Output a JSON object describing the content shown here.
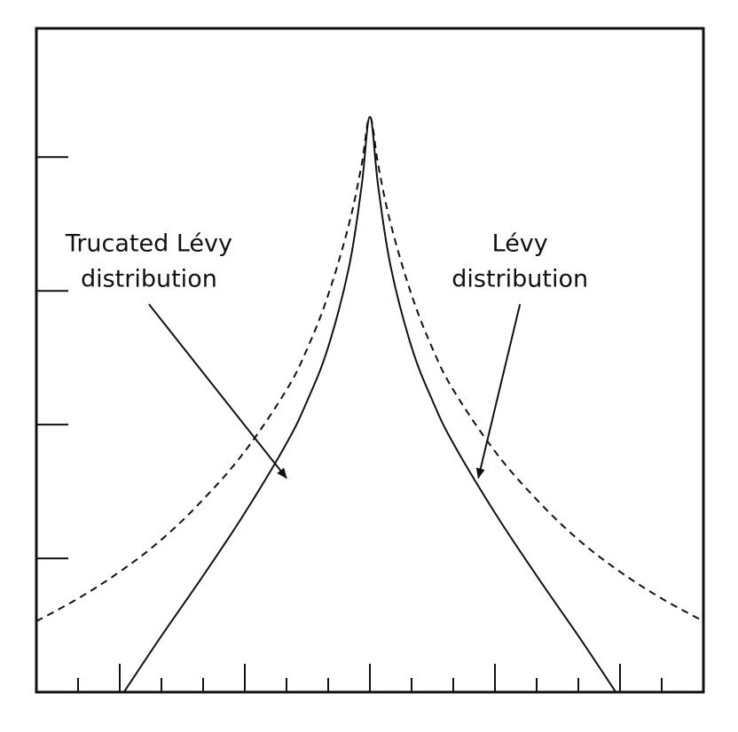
{
  "chart_data": {
    "type": "line",
    "title": "",
    "xlabel": "",
    "ylabel": "",
    "xlim": [
      -8,
      8
    ],
    "ylim": [
      0,
      4.3
    ],
    "x_ticks": [
      -7,
      -6,
      -5,
      -4,
      -3,
      -2,
      -1,
      0,
      1,
      2,
      3,
      4,
      5,
      6,
      7
    ],
    "y_ticks": [
      1,
      2,
      3,
      4
    ],
    "grid": false,
    "legend": "none",
    "series": [
      {
        "name": "Trucated Lévy distribution",
        "style": "solid",
        "color": "#111111",
        "x": [
          -5.9,
          -5,
          -4,
          -3,
          -2,
          -1.5,
          -1,
          -0.5,
          -0.2,
          0,
          0.2,
          0.5,
          1,
          1.5,
          2,
          3,
          4,
          5,
          5.9
        ],
        "y": [
          0.0,
          0.42,
          0.87,
          1.34,
          1.86,
          2.18,
          2.58,
          3.18,
          3.78,
          4.3,
          3.78,
          3.18,
          2.58,
          2.18,
          1.86,
          1.34,
          0.87,
          0.42,
          0.0
        ]
      },
      {
        "name": "Lévy distribution",
        "style": "dashed",
        "color": "#111111",
        "x": [
          -8,
          -7,
          -6,
          -5,
          -4,
          -3,
          -2,
          -1.5,
          -1,
          -0.5,
          -0.2,
          0,
          0.2,
          0.5,
          1,
          1.5,
          2,
          3,
          4,
          5,
          6,
          7,
          8
        ],
        "y": [
          0.53,
          0.7,
          0.9,
          1.14,
          1.44,
          1.8,
          2.26,
          2.57,
          2.97,
          3.5,
          3.94,
          4.3,
          3.94,
          3.5,
          2.97,
          2.57,
          2.26,
          1.8,
          1.44,
          1.14,
          0.9,
          0.7,
          0.53
        ]
      }
    ],
    "annotations": [
      {
        "lines": [
          "Trucated Lévy",
          "distribution"
        ],
        "series": "Trucated Lévy distribution",
        "arrow_from": [
          -5.3,
          2.9
        ],
        "arrow_to": [
          -2.0,
          1.6
        ]
      },
      {
        "lines": [
          "Lévy",
          "distribution"
        ],
        "series": "Lévy distribution",
        "arrow_from": [
          3.6,
          2.9
        ],
        "arrow_to": [
          2.6,
          1.6
        ]
      }
    ]
  }
}
